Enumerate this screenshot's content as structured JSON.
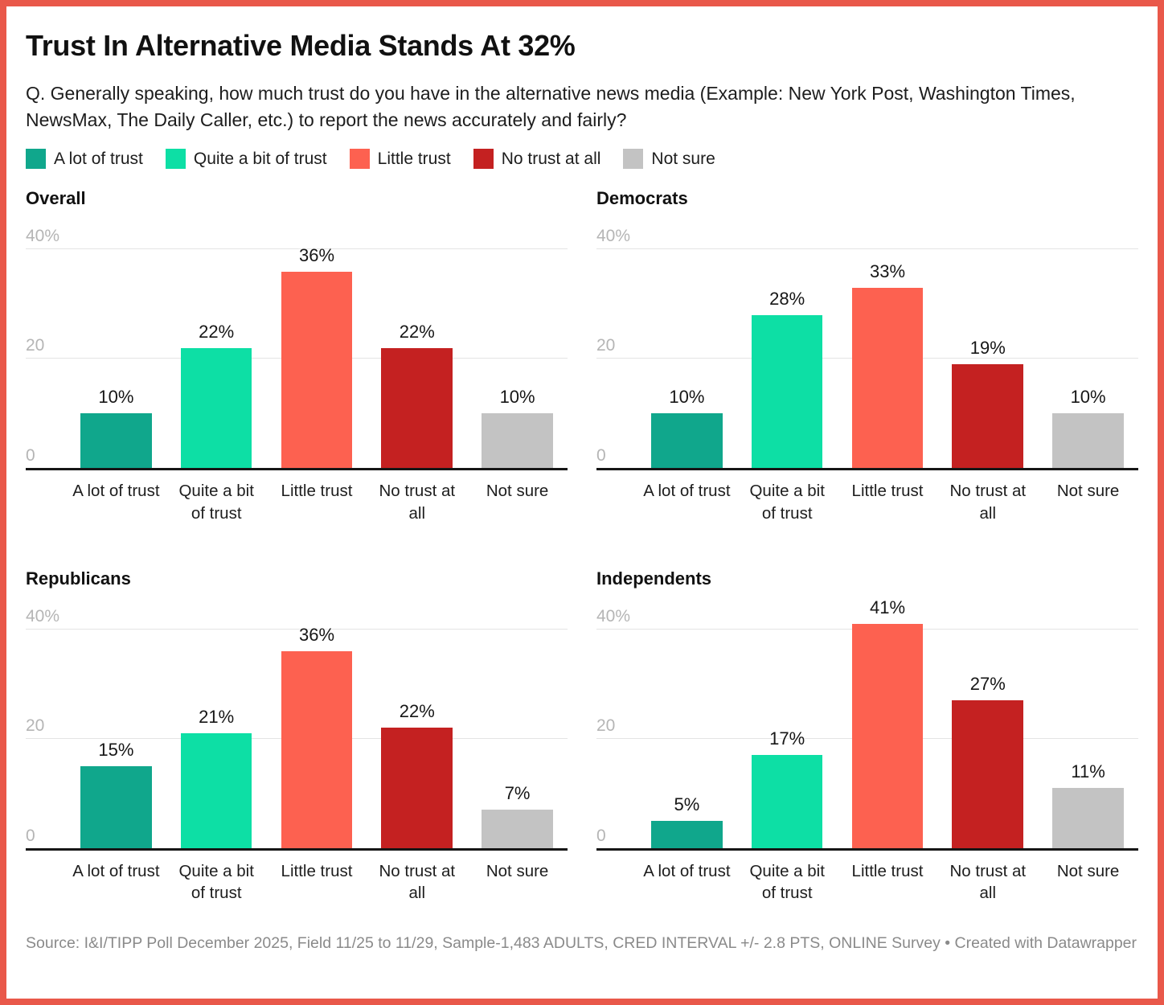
{
  "frame": {
    "border_color": "#e9584a",
    "background": "#ffffff"
  },
  "header": {
    "title": "Trust In Alternative Media Stands At 32%",
    "subtitle": "Q. Generally speaking, how much trust do you have in the alternative news media (Example: New York Post, Washington Times, NewsMax, The Daily Caller, etc.) to report the news accurately and fairly?"
  },
  "legend": {
    "position": "top",
    "items": [
      {
        "label": "A lot of trust",
        "color": "#10a78c"
      },
      {
        "label": "Quite a bit of trust",
        "color": "#0ddfa5"
      },
      {
        "label": "Little trust",
        "color": "#fd6150"
      },
      {
        "label": "No trust at all",
        "color": "#c42121"
      },
      {
        "label": "Not sure",
        "color": "#c3c3c3"
      }
    ]
  },
  "chart_data": {
    "type": "bar",
    "layout": "small-multiples-2x2",
    "categories": [
      "A lot of trust",
      "Quite a bit of trust",
      "Little trust",
      "No trust at all",
      "Not sure"
    ],
    "bar_colors": [
      "#10a78c",
      "#0ddfa5",
      "#fd6150",
      "#c42121",
      "#c3c3c3"
    ],
    "ylim": [
      0,
      45
    ],
    "yticks": [
      {
        "value": 0,
        "label": "0"
      },
      {
        "value": 20,
        "label": "20"
      },
      {
        "value": 40,
        "label": "40%"
      }
    ],
    "grid": true,
    "value_label_suffix": "%",
    "panels": [
      {
        "title": "Overall",
        "values": [
          10,
          22,
          36,
          22,
          10
        ]
      },
      {
        "title": "Democrats",
        "values": [
          10,
          28,
          33,
          19,
          10
        ]
      },
      {
        "title": "Republicans",
        "values": [
          15,
          21,
          36,
          22,
          7
        ]
      },
      {
        "title": "Independents",
        "values": [
          5,
          17,
          41,
          27,
          11
        ]
      }
    ]
  },
  "footer": {
    "source": "Source: I&I/TIPP Poll December 2025, Field 11/25 to 11/29, Sample-1,483 ADULTS, CRED INTERVAL +/- 2.8 PTS, ONLINE Survey • Created with Datawrapper"
  }
}
